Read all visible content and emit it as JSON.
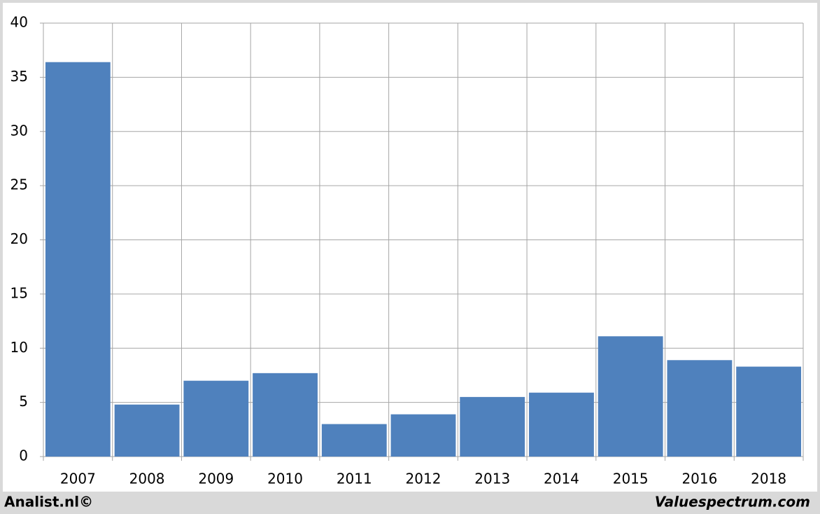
{
  "chart_data": {
    "type": "bar",
    "categories": [
      "2007",
      "2008",
      "2009",
      "2010",
      "2011",
      "2012",
      "2013",
      "2014",
      "2015",
      "2016",
      "2018"
    ],
    "values": [
      36.4,
      4.8,
      7.0,
      7.7,
      3.0,
      3.9,
      5.5,
      5.9,
      11.1,
      8.9,
      8.3
    ],
    "color": "#4f81bd",
    "ylim": [
      0,
      40
    ],
    "yticks": [
      0,
      5,
      10,
      15,
      20,
      25,
      30,
      35,
      40
    ],
    "grid": true
  },
  "footer": {
    "left": "Analist.nl©",
    "right": "Valuespectrum.com"
  }
}
